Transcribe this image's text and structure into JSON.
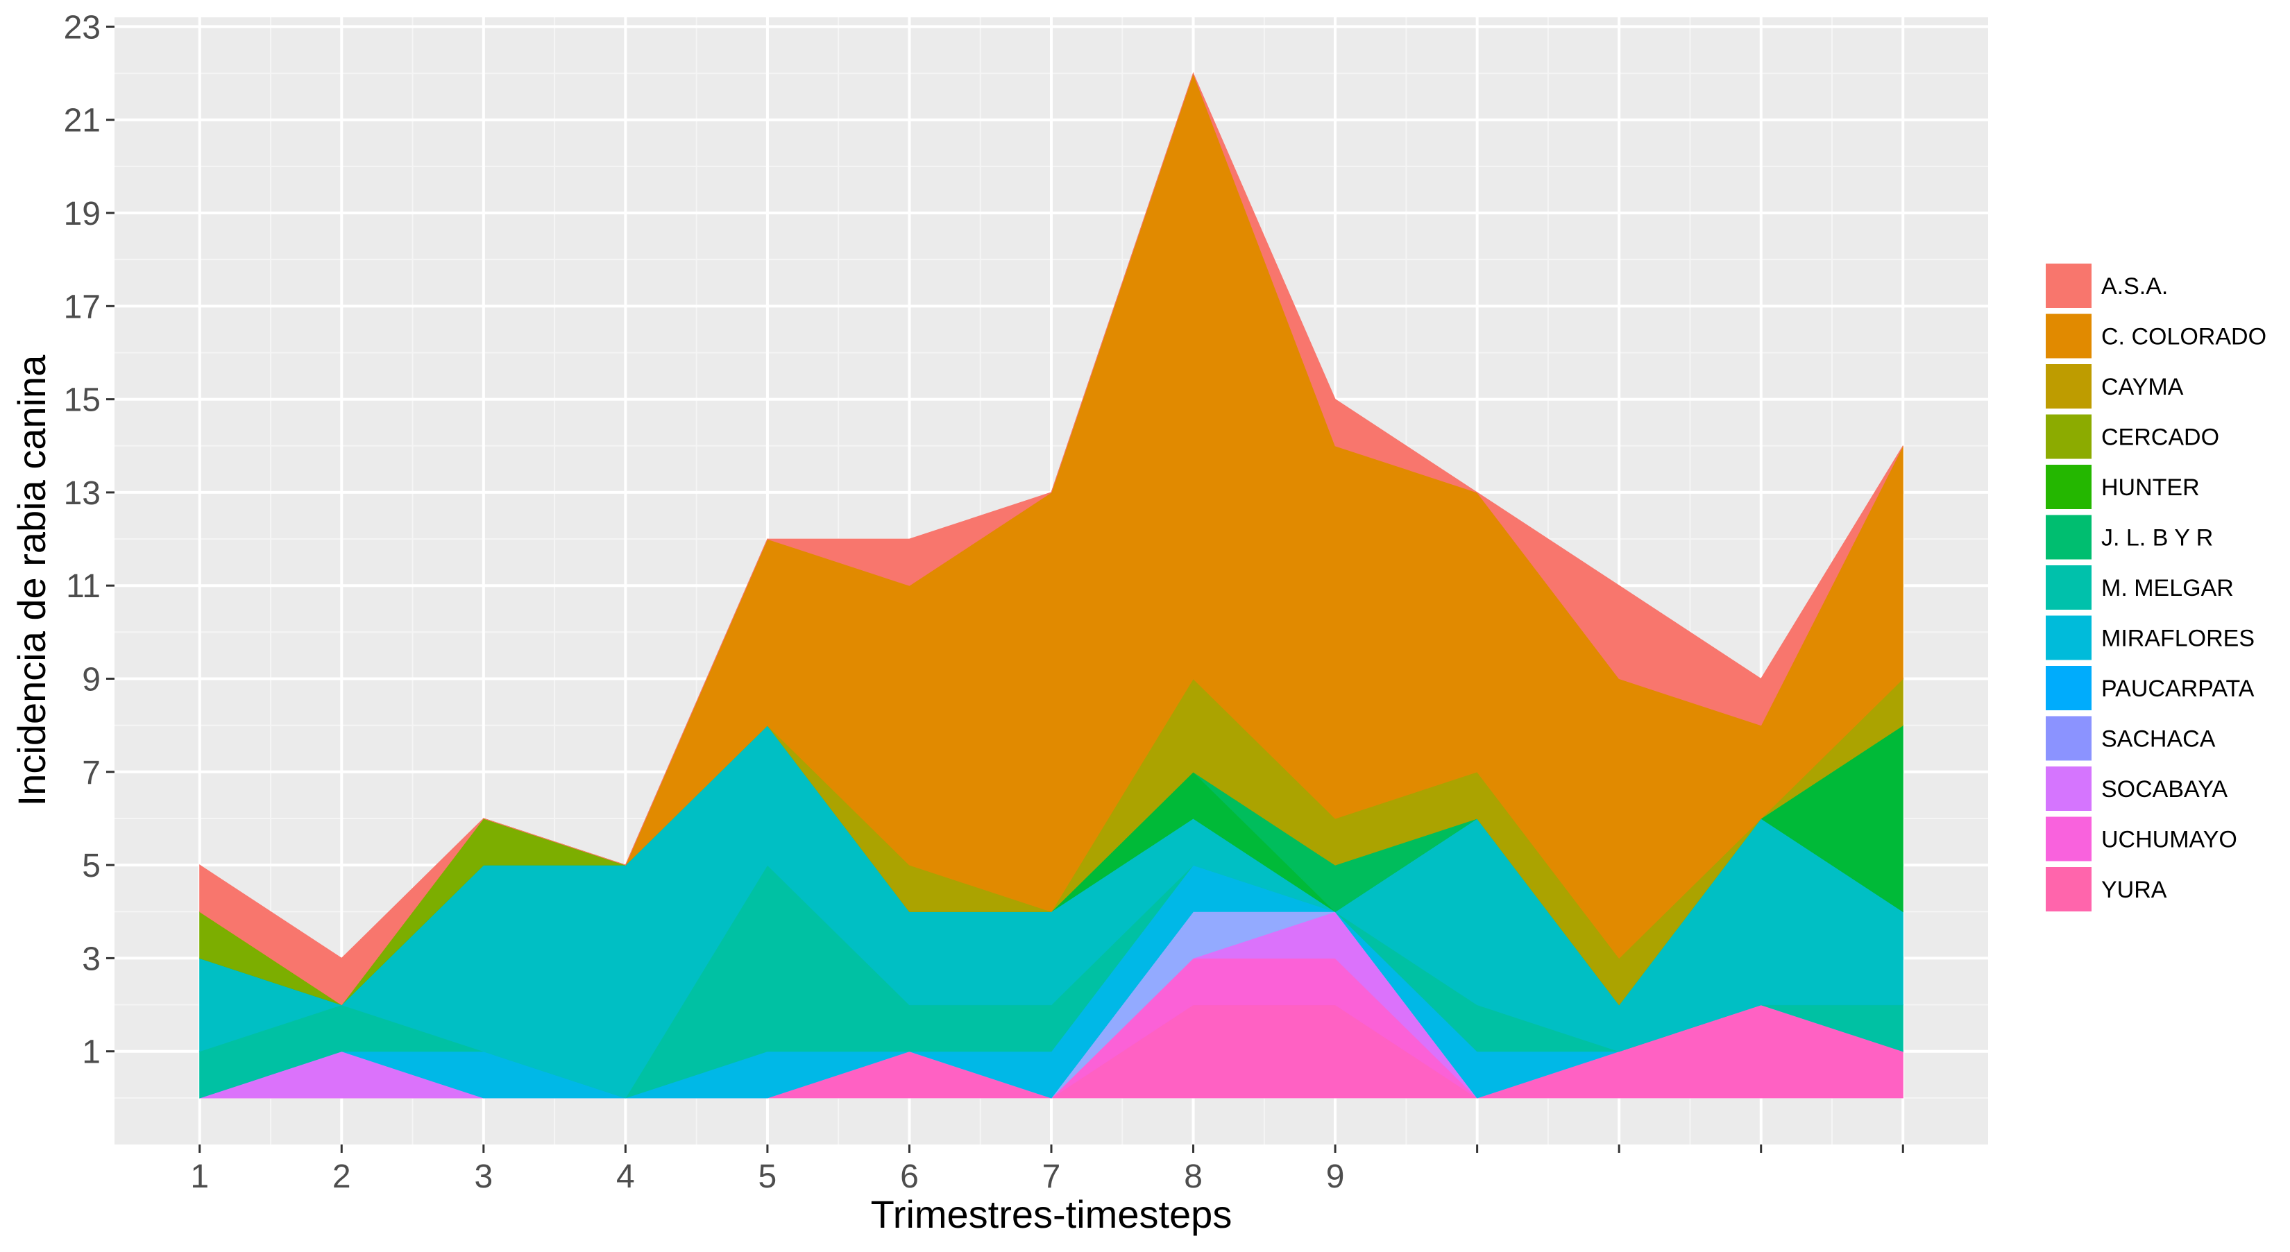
{
  "chart_data": {
    "type": "area",
    "stacked": true,
    "xlabel": "Trimestres-timesteps",
    "ylabel": "Incidencia de rabia canina",
    "x": [
      1,
      2,
      3,
      4,
      5,
      6,
      7,
      8,
      9,
      10,
      11,
      12,
      13
    ],
    "x_tick_labels": [
      "1",
      "2",
      "3",
      "4",
      "5",
      "6",
      "7",
      "8",
      "9"
    ],
    "y_ticks": [
      1,
      3,
      5,
      7,
      9,
      11,
      13,
      15,
      17,
      19,
      21,
      23
    ],
    "xlim": [
      0.4,
      13.6
    ],
    "ylim": [
      -1,
      23.2
    ],
    "grid": true,
    "legend_position": "right",
    "series": [
      {
        "name": "YURA",
        "color": "#FF61C3",
        "values": [
          0,
          0,
          0,
          0,
          0,
          1,
          0,
          2,
          2,
          0,
          1,
          2,
          1
        ]
      },
      {
        "name": "UCHUMAYO",
        "color": "#FB61D7",
        "values": [
          0,
          0,
          0,
          0,
          0,
          0,
          0,
          1,
          1,
          0,
          0,
          0,
          0
        ]
      },
      {
        "name": "SOCABAYA",
        "color": "#DB72FB",
        "values": [
          0,
          1,
          0,
          0,
          0,
          0,
          0,
          0,
          1,
          0,
          0,
          0,
          0
        ]
      },
      {
        "name": "SACHACA",
        "color": "#93AAFF",
        "values": [
          0,
          0,
          0,
          0,
          0,
          0,
          0,
          1,
          0,
          0,
          0,
          0,
          0
        ]
      },
      {
        "name": "PAUCARPATA",
        "color": "#00B8E7",
        "values": [
          0,
          0,
          1,
          0,
          1,
          0,
          1,
          1,
          0,
          1,
          0,
          0,
          0
        ]
      },
      {
        "name": "MIRAFLORES",
        "color": "#00C1A3",
        "values": [
          1,
          1,
          0,
          0,
          4,
          1,
          1,
          0,
          0,
          1,
          0,
          0,
          1
        ]
      },
      {
        "name": "M. MELGAR",
        "color": "#00BFC4",
        "values": [
          2,
          0,
          4,
          5,
          3,
          2,
          2,
          1,
          0,
          4,
          1,
          4,
          2
        ]
      },
      {
        "name": "J. L. B Y R",
        "color": "#00BA38",
        "values": [
          0,
          0,
          0,
          0,
          0,
          0,
          0,
          1,
          0,
          0,
          0,
          0,
          4
        ]
      },
      {
        "name": "HUNTER",
        "color": "#00BD5C",
        "values": [
          0,
          0,
          0,
          0,
          0,
          0,
          0,
          0,
          1,
          0,
          0,
          0,
          0
        ]
      },
      {
        "name": "CERCADO",
        "color": "#7CAE00",
        "values": [
          1,
          0,
          1,
          0,
          0,
          0,
          0,
          0,
          0,
          0,
          0,
          0,
          0
        ]
      },
      {
        "name": "CAYMA",
        "color": "#ABA300",
        "values": [
          0,
          0,
          0,
          0,
          0,
          1,
          0,
          2,
          1,
          1,
          1,
          0,
          1
        ]
      },
      {
        "name": "C. COLORADO",
        "color": "#E18A00",
        "values": [
          0,
          0,
          0,
          0,
          4,
          6,
          9,
          13,
          8,
          6,
          6,
          2,
          5
        ]
      },
      {
        "name": "A.S.A.",
        "color": "#F8766D",
        "values": [
          1,
          1,
          0,
          0,
          0,
          1,
          0,
          0,
          1,
          0,
          2,
          1,
          0
        ]
      }
    ],
    "legend": [
      {
        "name": "A.S.A.",
        "color": "#F8766D"
      },
      {
        "name": "C. COLORADO",
        "color": "#E18A00"
      },
      {
        "name": "CAYMA",
        "color": "#BE9C00"
      },
      {
        "name": "CERCADO",
        "color": "#8CAB00"
      },
      {
        "name": "HUNTER",
        "color": "#24B700"
      },
      {
        "name": "J. L. B Y R",
        "color": "#00BE70"
      },
      {
        "name": "M. MELGAR",
        "color": "#00C1AB"
      },
      {
        "name": "MIRAFLORES",
        "color": "#00BBDA"
      },
      {
        "name": "PAUCARPATA",
        "color": "#00ACFC"
      },
      {
        "name": "SACHACA",
        "color": "#8B93FF"
      },
      {
        "name": "SOCABAYA",
        "color": "#D575FE"
      },
      {
        "name": "UCHUMAYO",
        "color": "#F962DD"
      },
      {
        "name": "YURA",
        "color": "#FF65AC"
      }
    ]
  }
}
